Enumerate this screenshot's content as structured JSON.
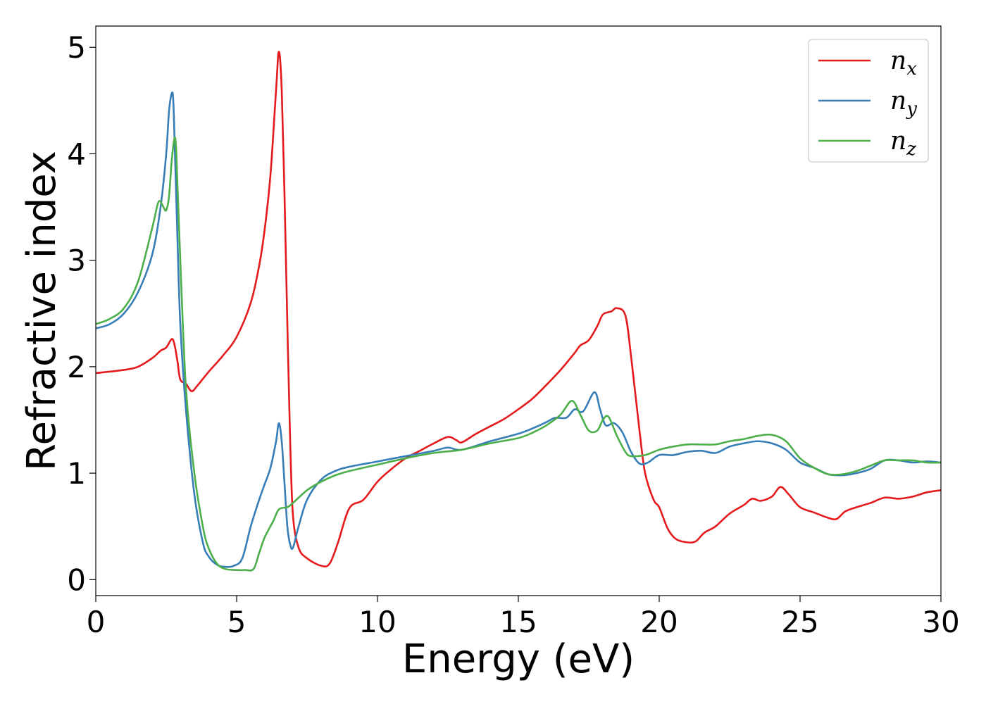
{
  "chart_data": {
    "type": "line",
    "xlabel": "Energy (eV)",
    "ylabel": "Refractive index",
    "xlim": [
      0,
      30
    ],
    "ylim": [
      -0.15,
      5.2
    ],
    "xticks": [
      0,
      5,
      10,
      15,
      20,
      25,
      30
    ],
    "yticks": [
      0,
      1,
      2,
      3,
      4,
      5
    ],
    "grid": false,
    "legend_position": "top-right",
    "series": [
      {
        "name": "n",
        "subscript": "x",
        "color": "#e41a1c",
        "x": [
          0,
          1,
          1.5,
          2,
          2.3,
          2.5,
          2.7,
          2.8,
          2.9,
          3.0,
          3.2,
          3.4,
          3.6,
          4.0,
          4.5,
          5.0,
          5.5,
          5.8,
          6.0,
          6.2,
          6.4,
          6.5,
          6.6,
          6.7,
          6.8,
          6.9,
          7.0,
          7.2,
          7.5,
          8.0,
          8.3,
          8.6,
          9.0,
          9.5,
          10.0,
          10.5,
          11.0,
          11.5,
          12.0,
          12.5,
          12.8,
          13.0,
          13.5,
          14.0,
          14.5,
          15.0,
          15.5,
          16.0,
          16.5,
          17.0,
          17.2,
          17.5,
          17.8,
          18.0,
          18.3,
          18.5,
          18.8,
          19.0,
          19.3,
          19.5,
          19.8,
          20.0,
          20.3,
          20.6,
          21.0,
          21.3,
          21.6,
          22.0,
          22.5,
          23.0,
          23.3,
          23.6,
          24.0,
          24.3,
          24.6,
          25.0,
          25.5,
          26.0,
          26.3,
          26.6,
          27.0,
          27.5,
          28.0,
          28.5,
          29.0,
          29.5,
          30.0
        ],
        "y": [
          1.94,
          1.97,
          2.0,
          2.08,
          2.15,
          2.18,
          2.26,
          2.2,
          2.05,
          1.88,
          1.84,
          1.77,
          1.82,
          1.95,
          2.1,
          2.28,
          2.6,
          2.95,
          3.3,
          3.8,
          4.6,
          4.96,
          4.6,
          3.6,
          2.4,
          1.3,
          0.6,
          0.3,
          0.2,
          0.13,
          0.15,
          0.35,
          0.67,
          0.75,
          0.92,
          1.04,
          1.14,
          1.21,
          1.28,
          1.34,
          1.31,
          1.29,
          1.37,
          1.44,
          1.51,
          1.6,
          1.7,
          1.83,
          1.97,
          2.13,
          2.2,
          2.25,
          2.38,
          2.49,
          2.52,
          2.55,
          2.48,
          2.1,
          1.4,
          1.0,
          0.75,
          0.68,
          0.48,
          0.38,
          0.35,
          0.36,
          0.44,
          0.5,
          0.62,
          0.7,
          0.76,
          0.74,
          0.78,
          0.87,
          0.8,
          0.68,
          0.63,
          0.58,
          0.57,
          0.64,
          0.68,
          0.72,
          0.77,
          0.76,
          0.78,
          0.82,
          0.84
        ]
      },
      {
        "name": "n",
        "subscript": "y",
        "color": "#377eb8",
        "x": [
          0,
          0.5,
          1.0,
          1.5,
          2.0,
          2.3,
          2.5,
          2.6,
          2.7,
          2.75,
          2.8,
          2.9,
          3.0,
          3.2,
          3.5,
          3.8,
          4.0,
          4.3,
          4.6,
          4.9,
          5.2,
          5.5,
          5.8,
          6.0,
          6.2,
          6.4,
          6.5,
          6.6,
          6.7,
          6.8,
          6.9,
          7.0,
          7.2,
          7.5,
          8.0,
          8.5,
          9.0,
          10.0,
          11.0,
          12.0,
          12.5,
          13.0,
          14.0,
          15.0,
          15.5,
          16.0,
          16.3,
          16.7,
          17.0,
          17.3,
          17.7,
          17.9,
          18.1,
          18.4,
          18.7,
          19.0,
          19.3,
          19.6,
          20.0,
          20.5,
          21.0,
          21.5,
          22.0,
          22.5,
          23.0,
          23.5,
          24.0,
          24.5,
          25.0,
          25.5,
          26.0,
          26.5,
          27.0,
          27.5,
          28.0,
          28.5,
          29.0,
          29.5,
          30.0
        ],
        "y": [
          2.36,
          2.4,
          2.5,
          2.7,
          3.05,
          3.5,
          4.0,
          4.4,
          4.57,
          4.5,
          4.1,
          3.2,
          2.4,
          1.6,
          0.8,
          0.35,
          0.22,
          0.14,
          0.12,
          0.13,
          0.2,
          0.5,
          0.75,
          0.9,
          1.05,
          1.3,
          1.47,
          1.3,
          0.9,
          0.5,
          0.33,
          0.3,
          0.5,
          0.75,
          0.94,
          1.02,
          1.06,
          1.11,
          1.16,
          1.21,
          1.24,
          1.22,
          1.3,
          1.37,
          1.42,
          1.48,
          1.52,
          1.52,
          1.6,
          1.58,
          1.76,
          1.6,
          1.45,
          1.47,
          1.38,
          1.2,
          1.09,
          1.1,
          1.17,
          1.17,
          1.2,
          1.21,
          1.19,
          1.25,
          1.28,
          1.3,
          1.28,
          1.22,
          1.1,
          1.05,
          0.99,
          0.98,
          1.0,
          1.04,
          1.12,
          1.12,
          1.1,
          1.11,
          1.1
        ]
      },
      {
        "name": "n",
        "subscript": "z",
        "color": "#4daf4a",
        "x": [
          0,
          0.5,
          1.0,
          1.5,
          2.0,
          2.2,
          2.3,
          2.4,
          2.5,
          2.6,
          2.7,
          2.8,
          2.85,
          2.9,
          3.0,
          3.2,
          3.5,
          3.8,
          4.0,
          4.3,
          4.6,
          5.0,
          5.3,
          5.6,
          5.8,
          6.0,
          6.3,
          6.5,
          6.8,
          7.0,
          7.5,
          8.0,
          8.5,
          9.0,
          10.0,
          11.0,
          12.0,
          13.0,
          14.0,
          15.0,
          15.5,
          16.0,
          16.5,
          16.9,
          17.2,
          17.5,
          17.8,
          18.0,
          18.2,
          18.5,
          18.8,
          19.0,
          19.5,
          20.0,
          20.5,
          21.0,
          21.5,
          22.0,
          22.5,
          23.0,
          23.5,
          24.0,
          24.5,
          25.0,
          25.5,
          26.0,
          26.5,
          27.0,
          27.5,
          28.0,
          28.5,
          29.0,
          29.5,
          30.0
        ],
        "y": [
          2.4,
          2.45,
          2.55,
          2.8,
          3.3,
          3.53,
          3.55,
          3.5,
          3.47,
          3.6,
          3.95,
          4.15,
          4.05,
          3.7,
          3.0,
          1.8,
          1.0,
          0.5,
          0.3,
          0.15,
          0.1,
          0.09,
          0.09,
          0.1,
          0.25,
          0.4,
          0.55,
          0.66,
          0.68,
          0.72,
          0.84,
          0.92,
          0.98,
          1.02,
          1.08,
          1.14,
          1.19,
          1.22,
          1.28,
          1.33,
          1.38,
          1.45,
          1.55,
          1.68,
          1.55,
          1.4,
          1.4,
          1.5,
          1.53,
          1.35,
          1.2,
          1.16,
          1.17,
          1.22,
          1.25,
          1.27,
          1.27,
          1.27,
          1.3,
          1.32,
          1.35,
          1.36,
          1.3,
          1.14,
          1.05,
          0.99,
          0.99,
          1.02,
          1.07,
          1.12,
          1.12,
          1.12,
          1.1,
          1.1
        ]
      }
    ]
  }
}
